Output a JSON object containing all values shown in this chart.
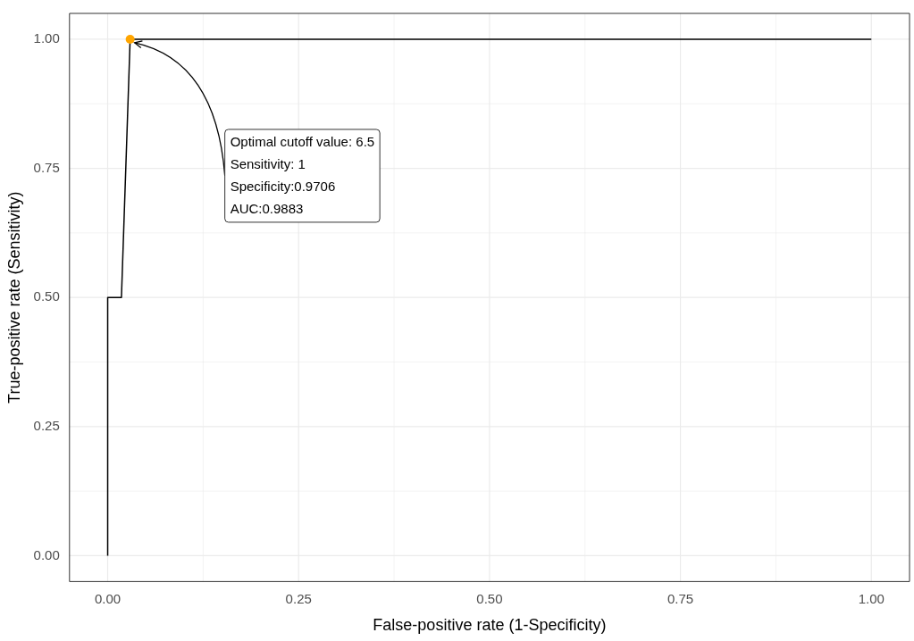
{
  "chart_data": {
    "type": "line",
    "xlabel": "False-positive rate (1-Specificity)",
    "ylabel": "True-positive rate (Sensitivity)",
    "series": [
      {
        "color": "#000000",
        "marker": "none",
        "x": [
          0,
          0,
          0.018,
          0.0294,
          1
        ],
        "values": [
          0,
          0.5,
          0.5,
          1,
          1
        ]
      },
      {
        "type": "scatter",
        "marker": "circle",
        "color": "#ffa500",
        "x": [
          0.0294
        ],
        "values": [
          1
        ]
      }
    ],
    "xlim": [
      -0.05,
      1.05
    ],
    "ylim": [
      -0.05,
      1.05
    ],
    "xticks": [
      {
        "value": 0,
        "label": "0.00"
      },
      {
        "value": 0.25,
        "label": "0.25"
      },
      {
        "value": 0.5,
        "label": "0.50"
      },
      {
        "value": 0.75,
        "label": "0.75"
      },
      {
        "value": 1,
        "label": "1.00"
      }
    ],
    "yticks": [
      {
        "value": 0,
        "label": "0.00"
      },
      {
        "value": 0.25,
        "label": "0.25"
      },
      {
        "value": 0.5,
        "label": "0.50"
      },
      {
        "value": 0.75,
        "label": "0.75"
      },
      {
        "value": 1,
        "label": "1.00"
      }
    ],
    "grid": true,
    "legend": false,
    "line_style": "solid",
    "annotations": [
      {
        "text": "Optimal cutoff value: 6.5\nSensitivity: 1\nSpecificity:0.9706\nAUC:0.9883",
        "x": 0.0294,
        "y": 1
      }
    ]
  }
}
